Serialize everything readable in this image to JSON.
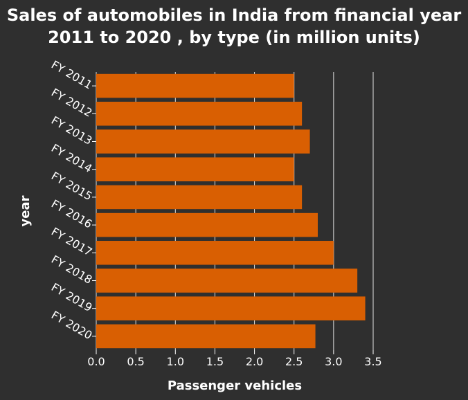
{
  "chart_data": {
    "type": "bar",
    "orientation": "horizontal",
    "title": "Sales of automobiles in India from financial year 2011 to 2020 , by type (in million units)",
    "xlabel": "Passenger vehicles",
    "ylabel": "year",
    "categories": [
      "FY 2011",
      "FY 2012",
      "FY 2013",
      "FY 2014",
      "FY 2015",
      "FY 2016",
      "FY 2017",
      "FY 2018",
      "FY 2019",
      "FY 2020"
    ],
    "values": [
      2.5,
      2.6,
      2.7,
      2.5,
      2.6,
      2.8,
      3.0,
      3.3,
      3.4,
      2.77
    ],
    "xlim": [
      0,
      3.5
    ],
    "xticks": [
      "0.0",
      "0.5",
      "1.0",
      "1.5",
      "2.0",
      "2.5",
      "3.0",
      "3.5"
    ],
    "grid": "vertical",
    "bar_color": "#d95f02",
    "background_color": "#2f2f2f",
    "gridline_color": "#ffffff"
  }
}
